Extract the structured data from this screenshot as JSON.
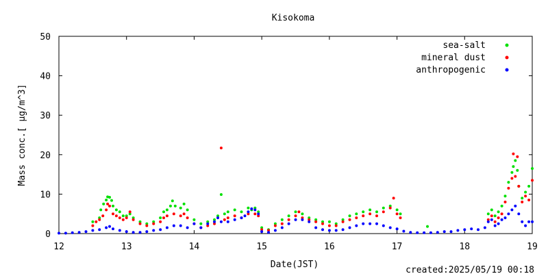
{
  "chart_data": {
    "type": "scatter",
    "title": "Kisokoma",
    "xlabel": "Date(JST)",
    "ylabel": "Mass conc.[ μg/m^3]",
    "footer": "created:2025/05/19 00:18",
    "xlim": [
      12,
      19
    ],
    "ylim": [
      0,
      50
    ],
    "x_ticks": [
      12,
      13,
      14,
      15,
      16,
      17,
      18,
      19
    ],
    "y_ticks": [
      0,
      10,
      20,
      30,
      40,
      50
    ],
    "legend": "top-right",
    "grid": false,
    "series": [
      {
        "name": "sea-salt",
        "color": "#00e000",
        "points": [
          [
            12.5,
            3.0
          ],
          [
            12.6,
            4.0
          ],
          [
            12.62,
            6.0
          ],
          [
            12.66,
            7.5
          ],
          [
            12.7,
            8.5
          ],
          [
            12.72,
            9.3
          ],
          [
            12.75,
            9.2
          ],
          [
            12.78,
            8.4
          ],
          [
            12.8,
            7.0
          ],
          [
            12.85,
            6.0
          ],
          [
            12.9,
            5.5
          ],
          [
            12.95,
            4.5
          ],
          [
            13.0,
            4.5
          ],
          [
            13.05,
            5.0
          ],
          [
            13.1,
            4.0
          ],
          [
            13.2,
            3.0
          ],
          [
            13.3,
            2.5
          ],
          [
            13.4,
            3.0
          ],
          [
            13.5,
            4.0
          ],
          [
            13.55,
            5.5
          ],
          [
            13.6,
            6.0
          ],
          [
            13.65,
            7.0
          ],
          [
            13.68,
            8.3
          ],
          [
            13.72,
            7.0
          ],
          [
            13.8,
            6.5
          ],
          [
            13.85,
            7.5
          ],
          [
            13.9,
            6.0
          ],
          [
            14.0,
            3.5
          ],
          [
            14.1,
            2.5
          ],
          [
            14.2,
            3.0
          ],
          [
            14.3,
            3.5
          ],
          [
            14.35,
            4.5
          ],
          [
            14.4,
            9.9
          ],
          [
            14.45,
            5.0
          ],
          [
            14.5,
            5.5
          ],
          [
            14.6,
            6.0
          ],
          [
            14.7,
            5.5
          ],
          [
            14.8,
            6.5
          ],
          [
            14.85,
            6.0
          ],
          [
            14.9,
            6.5
          ],
          [
            14.95,
            5.5
          ],
          [
            15.0,
            1.5
          ],
          [
            15.1,
            1.0
          ],
          [
            15.2,
            2.5
          ],
          [
            15.3,
            3.5
          ],
          [
            15.4,
            4.5
          ],
          [
            15.5,
            5.5
          ],
          [
            15.6,
            5.0
          ],
          [
            15.7,
            4.0
          ],
          [
            15.8,
            3.5
          ],
          [
            15.9,
            3.0
          ],
          [
            16.0,
            3.0
          ],
          [
            16.1,
            2.5
          ],
          [
            16.2,
            3.5
          ],
          [
            16.3,
            4.5
          ],
          [
            16.4,
            5.0
          ],
          [
            16.5,
            5.5
          ],
          [
            16.6,
            6.0
          ],
          [
            16.7,
            5.5
          ],
          [
            16.8,
            6.5
          ],
          [
            16.9,
            7.0
          ],
          [
            17.0,
            6.0
          ],
          [
            17.05,
            5.0
          ],
          [
            17.45,
            1.8
          ],
          [
            18.35,
            5.0
          ],
          [
            18.4,
            6.0
          ],
          [
            18.45,
            4.5
          ],
          [
            18.5,
            5.5
          ],
          [
            18.55,
            7.0
          ],
          [
            18.6,
            9.5
          ],
          [
            18.65,
            13.0
          ],
          [
            18.7,
            15.5
          ],
          [
            18.72,
            17.0
          ],
          [
            18.75,
            18.5
          ],
          [
            18.78,
            16.0
          ],
          [
            18.8,
            12.0
          ],
          [
            18.85,
            9.0
          ],
          [
            18.9,
            10.5
          ],
          [
            18.95,
            12.0
          ],
          [
            19.0,
            16.5
          ]
        ]
      },
      {
        "name": "mineral dust",
        "color": "#ff0000",
        "points": [
          [
            12.5,
            2.0
          ],
          [
            12.55,
            3.0
          ],
          [
            12.6,
            3.5
          ],
          [
            12.65,
            4.5
          ],
          [
            12.7,
            6.0
          ],
          [
            12.72,
            7.5
          ],
          [
            12.75,
            7.0
          ],
          [
            12.8,
            5.0
          ],
          [
            12.85,
            4.5
          ],
          [
            12.9,
            4.0
          ],
          [
            12.95,
            3.5
          ],
          [
            13.0,
            4.0
          ],
          [
            13.05,
            5.5
          ],
          [
            13.1,
            3.5
          ],
          [
            13.2,
            2.5
          ],
          [
            13.3,
            2.0
          ],
          [
            13.4,
            2.5
          ],
          [
            13.5,
            3.0
          ],
          [
            13.55,
            4.0
          ],
          [
            13.6,
            4.5
          ],
          [
            13.7,
            5.0
          ],
          [
            13.8,
            4.5
          ],
          [
            13.85,
            5.0
          ],
          [
            13.9,
            4.0
          ],
          [
            14.0,
            2.5
          ],
          [
            14.1,
            1.5
          ],
          [
            14.2,
            2.0
          ],
          [
            14.3,
            2.5
          ],
          [
            14.4,
            21.7
          ],
          [
            14.45,
            3.5
          ],
          [
            14.5,
            4.0
          ],
          [
            14.6,
            4.5
          ],
          [
            14.7,
            4.0
          ],
          [
            14.8,
            5.0
          ],
          [
            14.9,
            5.0
          ],
          [
            14.95,
            4.5
          ],
          [
            15.0,
            1.0
          ],
          [
            15.1,
            0.8
          ],
          [
            15.2,
            2.0
          ],
          [
            15.3,
            2.5
          ],
          [
            15.4,
            3.5
          ],
          [
            15.5,
            4.5
          ],
          [
            15.55,
            5.5
          ],
          [
            15.6,
            4.0
          ],
          [
            15.7,
            3.5
          ],
          [
            15.8,
            3.0
          ],
          [
            15.9,
            2.5
          ],
          [
            16.0,
            2.0
          ],
          [
            16.1,
            2.0
          ],
          [
            16.2,
            3.0
          ],
          [
            16.3,
            3.5
          ],
          [
            16.4,
            4.0
          ],
          [
            16.5,
            4.5
          ],
          [
            16.6,
            5.0
          ],
          [
            16.7,
            4.5
          ],
          [
            16.8,
            5.5
          ],
          [
            16.9,
            6.5
          ],
          [
            16.95,
            9.0
          ],
          [
            17.0,
            5.0
          ],
          [
            17.05,
            4.0
          ],
          [
            18.35,
            3.5
          ],
          [
            18.4,
            4.5
          ],
          [
            18.45,
            3.0
          ],
          [
            18.5,
            4.0
          ],
          [
            18.55,
            5.0
          ],
          [
            18.6,
            8.0
          ],
          [
            18.65,
            11.5
          ],
          [
            18.7,
            14.0
          ],
          [
            18.72,
            20.2
          ],
          [
            18.75,
            14.5
          ],
          [
            18.78,
            19.5
          ],
          [
            18.8,
            12.0
          ],
          [
            18.85,
            8.0
          ],
          [
            18.9,
            9.5
          ],
          [
            18.95,
            8.5
          ],
          [
            19.0,
            13.5
          ]
        ]
      },
      {
        "name": "anthropogenic",
        "color": "#0000ff",
        "points": [
          [
            12.0,
            0.1
          ],
          [
            12.1,
            0.1
          ],
          [
            12.2,
            0.2
          ],
          [
            12.3,
            0.3
          ],
          [
            12.4,
            0.5
          ],
          [
            12.5,
            0.8
          ],
          [
            12.6,
            1.0
          ],
          [
            12.7,
            1.5
          ],
          [
            12.75,
            1.8
          ],
          [
            12.8,
            1.2
          ],
          [
            12.9,
            0.8
          ],
          [
            13.0,
            0.5
          ],
          [
            13.1,
            0.3
          ],
          [
            13.2,
            0.3
          ],
          [
            13.3,
            0.5
          ],
          [
            13.4,
            0.8
          ],
          [
            13.5,
            1.0
          ],
          [
            13.6,
            1.5
          ],
          [
            13.7,
            2.0
          ],
          [
            13.8,
            2.0
          ],
          [
            13.9,
            1.5
          ],
          [
            14.0,
            2.5
          ],
          [
            14.1,
            1.5
          ],
          [
            14.2,
            2.5
          ],
          [
            14.3,
            3.0
          ],
          [
            14.35,
            4.0
          ],
          [
            14.4,
            3.0
          ],
          [
            14.5,
            3.0
          ],
          [
            14.6,
            3.5
          ],
          [
            14.7,
            4.0
          ],
          [
            14.75,
            4.5
          ],
          [
            14.8,
            5.5
          ],
          [
            14.85,
            6.3
          ],
          [
            14.9,
            6.0
          ],
          [
            14.95,
            5.0
          ],
          [
            15.0,
            0.5
          ],
          [
            15.1,
            0.3
          ],
          [
            15.2,
            0.8
          ],
          [
            15.3,
            1.5
          ],
          [
            15.4,
            2.5
          ],
          [
            15.5,
            3.5
          ],
          [
            15.6,
            3.5
          ],
          [
            15.7,
            3.0
          ],
          [
            15.8,
            1.5
          ],
          [
            15.9,
            1.0
          ],
          [
            16.0,
            0.8
          ],
          [
            16.1,
            0.8
          ],
          [
            16.2,
            1.0
          ],
          [
            16.3,
            1.5
          ],
          [
            16.4,
            2.0
          ],
          [
            16.5,
            2.5
          ],
          [
            16.6,
            2.5
          ],
          [
            16.7,
            2.5
          ],
          [
            16.8,
            2.0
          ],
          [
            16.9,
            1.5
          ],
          [
            17.0,
            1.2
          ],
          [
            17.1,
            0.6
          ],
          [
            17.2,
            0.3
          ],
          [
            17.3,
            0.2
          ],
          [
            17.4,
            0.2
          ],
          [
            17.5,
            0.2
          ],
          [
            17.6,
            0.3
          ],
          [
            17.7,
            0.5
          ],
          [
            17.8,
            0.5
          ],
          [
            17.9,
            0.8
          ],
          [
            18.0,
            1.0
          ],
          [
            18.1,
            1.2
          ],
          [
            18.2,
            1.0
          ],
          [
            18.3,
            1.5
          ],
          [
            18.35,
            3.0
          ],
          [
            18.4,
            3.5
          ],
          [
            18.45,
            2.0
          ],
          [
            18.5,
            2.5
          ],
          [
            18.55,
            3.5
          ],
          [
            18.6,
            4.0
          ],
          [
            18.65,
            5.0
          ],
          [
            18.7,
            6.0
          ],
          [
            18.75,
            7.0
          ],
          [
            18.8,
            5.0
          ],
          [
            18.85,
            3.0
          ],
          [
            18.9,
            2.0
          ],
          [
            18.95,
            3.0
          ],
          [
            19.0,
            3.0
          ]
        ]
      }
    ]
  }
}
